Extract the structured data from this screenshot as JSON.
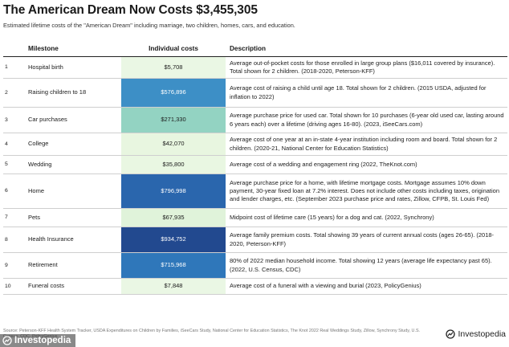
{
  "title": "The American Dream Now Costs $3,455,305",
  "subtitle": "Estimated lifetime costs of the \"American Dream\" including marriage, two children, homes, cars, and education.",
  "headers": {
    "milestone": "Milestone",
    "cost": "Individual costs",
    "description": "Description"
  },
  "chart_data": {
    "type": "table",
    "title": "The American Dream Now Costs $3,455,305",
    "columns": [
      "Milestone",
      "Individual costs",
      "Description"
    ],
    "rows": [
      {
        "num": "1",
        "milestone": "Hospital birth",
        "cost_label": "$5,708",
        "value": 5708,
        "bg": "#eaf7e4",
        "fg": "#1a1a1a",
        "description": "Average out-of-pocket costs for those enrolled in large group plans ($16,011 covered by insurance). Total shown for 2 children. (2018-2020, Peterson-KFF)"
      },
      {
        "num": "2",
        "milestone": "Raising children to 18",
        "cost_label": "$576,896",
        "value": 576896,
        "bg": "#3d8fc6",
        "fg": "#ffffff",
        "description": "Average cost of raising a child until age 18. Total shown for 2 children. (2015 USDA, adjusted for inflation to 2022)"
      },
      {
        "num": "3",
        "milestone": "Car purchases",
        "cost_label": "$271,330",
        "value": 271330,
        "bg": "#93d3c2",
        "fg": "#1a1a1a",
        "description": "Average purchase price for used car. Total shown for 10 purchases (6-year old used car, lasting around 6 years each) over a lifetime (driving ages 16-80). (2023, iSeeCars.com)"
      },
      {
        "num": "4",
        "milestone": "College",
        "cost_label": "$42,070",
        "value": 42070,
        "bg": "#e8f6e0",
        "fg": "#1a1a1a",
        "description": "Average cost of one year at an in-state 4-year institution including room and board. Total shown for 2 children. (2020-21, National Center for Education Statistics)"
      },
      {
        "num": "5",
        "milestone": "Wedding",
        "cost_label": "$35,800",
        "value": 35800,
        "bg": "#e9f7e2",
        "fg": "#1a1a1a",
        "description": "Average cost of a wedding and engagement ring (2022, TheKnot.com)"
      },
      {
        "num": "6",
        "milestone": "Home",
        "cost_label": "$796,998",
        "value": 796998,
        "bg": "#2a66ad",
        "fg": "#ffffff",
        "description": "Average purchase price for a home, with lifetime mortgage costs. Mortgage assumes 10% down payment, 30-year fixed loan at 7.2% interest. Does not include other costs including taxes, origination and lender charges, etc. (September 2023 purchase price and rates, Zillow, CFPB, St. Louis Fed)"
      },
      {
        "num": "7",
        "milestone": "Pets",
        "cost_label": "$67,935",
        "value": 67935,
        "bg": "#e0f3da",
        "fg": "#1a1a1a",
        "description": "Midpoint cost of lifetime care (15 years) for a dog and cat. (2022, Synchrony)"
      },
      {
        "num": "8",
        "milestone": "Health Insurance",
        "cost_label": "$934,752",
        "value": 934752,
        "bg": "#22498f",
        "fg": "#ffffff",
        "description": "Average family premium costs. Total showing 39 years of current annual costs (ages 26-65). (2018-2020, Peterson-KFF)"
      },
      {
        "num": "9",
        "milestone": "Retirement",
        "cost_label": "$715,968",
        "value": 715968,
        "bg": "#2f77ba",
        "fg": "#ffffff",
        "description": "80% of 2022 median household income. Total showing 12 years (average life expectancy past 65). (2022, U.S. Census, CDC)"
      },
      {
        "num": "10",
        "milestone": "Funeral costs",
        "cost_label": "$7,848",
        "value": 7848,
        "bg": "#eaf7e4",
        "fg": "#1a1a1a",
        "description": "Average cost of a funeral with a viewing and burial (2023, PolicyGenius)"
      }
    ]
  },
  "footer": {
    "sources": "Source: Peterson-KFF Health System Tracker, USDA Expenditures on Children by Families, iSeeCars Study, National Center for Education Statistics, The Knot 2022 Real Weddings Study, Zillow, Synchrony Study, U.S. Census, CDC, PolicyGenius",
    "watermark": "Investopedia",
    "brand": "Investopedia"
  }
}
